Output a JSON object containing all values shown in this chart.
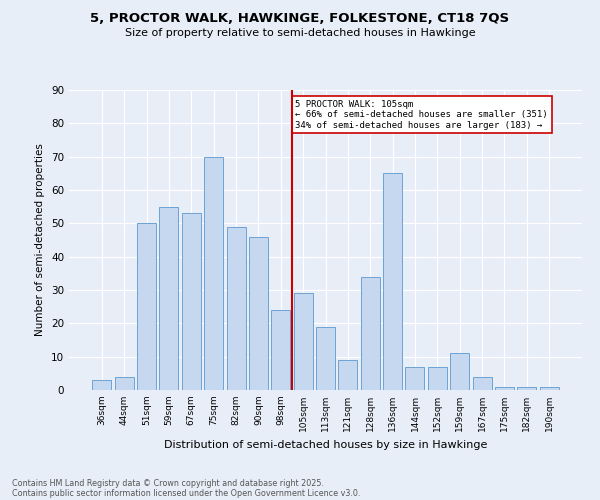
{
  "title": "5, PROCTOR WALK, HAWKINGE, FOLKESTONE, CT18 7QS",
  "subtitle": "Size of property relative to semi-detached houses in Hawkinge",
  "xlabel": "Distribution of semi-detached houses by size in Hawkinge",
  "ylabel": "Number of semi-detached properties",
  "categories": [
    "36sqm",
    "44sqm",
    "51sqm",
    "59sqm",
    "67sqm",
    "75sqm",
    "82sqm",
    "90sqm",
    "98sqm",
    "105sqm",
    "113sqm",
    "121sqm",
    "128sqm",
    "136sqm",
    "144sqm",
    "152sqm",
    "159sqm",
    "167sqm",
    "175sqm",
    "182sqm",
    "190sqm"
  ],
  "values": [
    3,
    4,
    50,
    55,
    53,
    70,
    49,
    46,
    24,
    29,
    19,
    9,
    34,
    65,
    7,
    7,
    11,
    4,
    1,
    1,
    1
  ],
  "bar_color": "#c5d8f0",
  "bar_edge_color": "#6ca3d4",
  "highlight_index": 9,
  "highlight_line_color": "#cc0000",
  "annotation_text": "5 PROCTOR WALK: 105sqm\n← 66% of semi-detached houses are smaller (351)\n34% of semi-detached houses are larger (183) →",
  "annotation_box_color": "#ffffff",
  "annotation_box_edge": "#cc0000",
  "footer1": "Contains HM Land Registry data © Crown copyright and database right 2025.",
  "footer2": "Contains public sector information licensed under the Open Government Licence v3.0.",
  "background_color": "#e8eef8",
  "ylim": [
    0,
    90
  ],
  "yticks": [
    0,
    10,
    20,
    30,
    40,
    50,
    60,
    70,
    80,
    90
  ]
}
